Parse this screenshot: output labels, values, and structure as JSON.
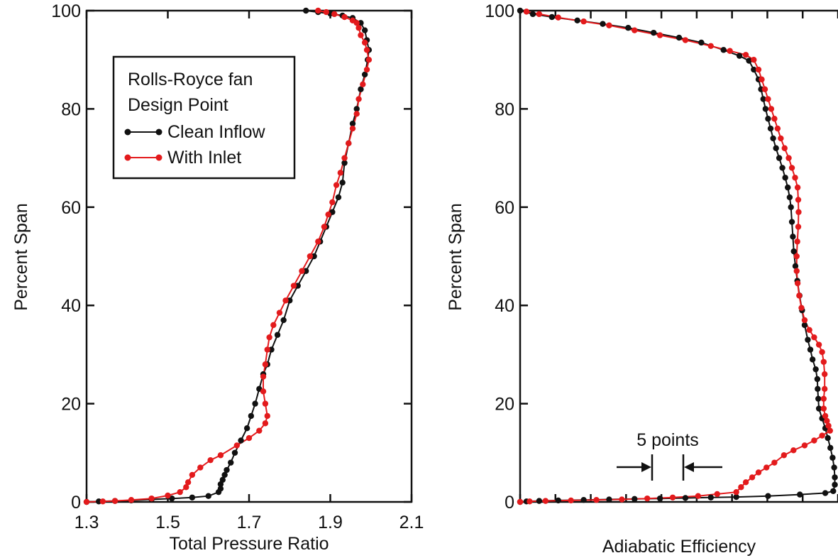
{
  "chart_data": [
    {
      "type": "line",
      "title": "",
      "xlabel": "Total Pressure Ratio",
      "ylabel": "Percent Span",
      "xlim": [
        1.3,
        2.1
      ],
      "ylim": [
        0,
        100
      ],
      "xticks": [
        "1.3",
        "1.5",
        "1.7",
        "1.9",
        "2.1"
      ],
      "yticks": [
        "0",
        "20",
        "40",
        "60",
        "80",
        "100"
      ],
      "grid": false,
      "legend": {
        "placement": "top-left",
        "title_lines": [
          "Rolls-Royce fan",
          "Design Point"
        ],
        "entries": [
          "Clean Inflow",
          "With Inlet"
        ]
      },
      "series": [
        {
          "name": "Clean Inflow",
          "color": "#111111",
          "points": [
            [
              1.3,
              0
            ],
            [
              1.33,
              0.1
            ],
            [
              1.37,
              0.2
            ],
            [
              1.41,
              0.3
            ],
            [
              1.46,
              0.5
            ],
            [
              1.51,
              0.7
            ],
            [
              1.56,
              0.9
            ],
            [
              1.6,
              1.2
            ],
            [
              1.625,
              2.0
            ],
            [
              1.63,
              2.7
            ],
            [
              1.63,
              3.6
            ],
            [
              1.635,
              4.5
            ],
            [
              1.64,
              5.5
            ],
            [
              1.645,
              6.5
            ],
            [
              1.655,
              8.0
            ],
            [
              1.665,
              10.0
            ],
            [
              1.68,
              12.5
            ],
            [
              1.695,
              15.0
            ],
            [
              1.705,
              17.5
            ],
            [
              1.715,
              20.0
            ],
            [
              1.725,
              23.0
            ],
            [
              1.735,
              26.0
            ],
            [
              1.745,
              28.0
            ],
            [
              1.755,
              31.0
            ],
            [
              1.77,
              34.0
            ],
            [
              1.785,
              37.0
            ],
            [
              1.8,
              41.0
            ],
            [
              1.82,
              44.0
            ],
            [
              1.84,
              47.0
            ],
            [
              1.86,
              50.0
            ],
            [
              1.875,
              53.0
            ],
            [
              1.89,
              56.0
            ],
            [
              1.905,
              59.0
            ],
            [
              1.92,
              62.0
            ],
            [
              1.93,
              65.0
            ],
            [
              1.935,
              69.0
            ],
            [
              1.945,
              73.0
            ],
            [
              1.955,
              77.0
            ],
            [
              1.965,
              80.0
            ],
            [
              1.975,
              84.0
            ],
            [
              1.985,
              87.0
            ],
            [
              1.992,
              90.0
            ],
            [
              1.995,
              92.0
            ],
            [
              1.99,
              94.0
            ],
            [
              1.985,
              96.0
            ],
            [
              1.975,
              97.5
            ],
            [
              1.955,
              98.5
            ],
            [
              1.93,
              99.0
            ],
            [
              1.9,
              99.4
            ],
            [
              1.87,
              99.7
            ],
            [
              1.84,
              100.0
            ]
          ]
        },
        {
          "name": "With Inlet",
          "color": "#e31a1c",
          "points": [
            [
              1.3,
              0
            ],
            [
              1.34,
              0.1
            ],
            [
              1.37,
              0.2
            ],
            [
              1.41,
              0.4
            ],
            [
              1.46,
              0.7
            ],
            [
              1.5,
              1.3
            ],
            [
              1.53,
              2.0
            ],
            [
              1.545,
              3.0
            ],
            [
              1.55,
              4.0
            ],
            [
              1.56,
              5.5
            ],
            [
              1.58,
              7.0
            ],
            [
              1.605,
              8.5
            ],
            [
              1.63,
              9.5
            ],
            [
              1.67,
              11.5
            ],
            [
              1.7,
              13.0
            ],
            [
              1.725,
              14.5
            ],
            [
              1.74,
              16.0
            ],
            [
              1.745,
              17.5
            ],
            [
              1.74,
              20.0
            ],
            [
              1.735,
              22.5
            ],
            [
              1.735,
              25.5
            ],
            [
              1.74,
              28.0
            ],
            [
              1.745,
              31.0
            ],
            [
              1.75,
              33.5
            ],
            [
              1.76,
              36.0
            ],
            [
              1.775,
              38.5
            ],
            [
              1.79,
              41.0
            ],
            [
              1.81,
              44.0
            ],
            [
              1.83,
              47.0
            ],
            [
              1.85,
              50.0
            ],
            [
              1.87,
              53.0
            ],
            [
              1.885,
              56.0
            ],
            [
              1.895,
              58.5
            ],
            [
              1.905,
              61.0
            ],
            [
              1.915,
              64.5
            ],
            [
              1.925,
              67.0
            ],
            [
              1.935,
              70.0
            ],
            [
              1.945,
              73.0
            ],
            [
              1.955,
              76.0
            ],
            [
              1.965,
              79.0
            ],
            [
              1.97,
              82.0
            ],
            [
              1.98,
              85.0
            ],
            [
              1.99,
              88.0
            ],
            [
              1.995,
              90.0
            ],
            [
              1.99,
              92.0
            ],
            [
              1.985,
              93.5
            ],
            [
              1.975,
              95.0
            ],
            [
              1.97,
              96.5
            ],
            [
              1.965,
              97.5
            ],
            [
              1.955,
              98.0
            ],
            [
              1.935,
              98.7
            ],
            [
              1.91,
              99.3
            ],
            [
              1.89,
              99.7
            ],
            [
              1.87,
              100.0
            ]
          ]
        }
      ]
    },
    {
      "type": "line",
      "title": "",
      "xlabel": "Adiabatic Efficiency",
      "ylabel": "Percent Span",
      "xlim": [
        0,
        100
      ],
      "ylim": [
        0,
        100
      ],
      "xticks": [
        "",
        "",
        "",
        "",
        "",
        "",
        "",
        "",
        "",
        ""
      ],
      "yticks": [
        "0",
        "20",
        "40",
        "60",
        "80",
        "100"
      ],
      "grid": false,
      "annotation": {
        "text": "5 points",
        "x_from": 41.8,
        "x_to": 50.5,
        "y": 7
      },
      "series": [
        {
          "name": "Clean Inflow",
          "color": "#111111",
          "points": [
            [
              0,
              0
            ],
            [
              2,
              0.1
            ],
            [
              6,
              0.2
            ],
            [
              12,
              0.3
            ],
            [
              20,
              0.4
            ],
            [
              28,
              0.5
            ],
            [
              36,
              0.6
            ],
            [
              44,
              0.7
            ],
            [
              52,
              0.8
            ],
            [
              60,
              0.9
            ],
            [
              68,
              1.0
            ],
            [
              78,
              1.2
            ],
            [
              88,
              1.5
            ],
            [
              96,
              1.8
            ],
            [
              98.5,
              2.2
            ],
            [
              99,
              3.5
            ],
            [
              99,
              5.0
            ],
            [
              98.8,
              7.0
            ],
            [
              98.3,
              9.0
            ],
            [
              97.6,
              11.0
            ],
            [
              96.8,
              13.0
            ],
            [
              96,
              15.0
            ],
            [
              95,
              17.0
            ],
            [
              94,
              19.0
            ],
            [
              93.8,
              21.0
            ],
            [
              93.6,
              23.0
            ],
            [
              93.5,
              25.0
            ],
            [
              93,
              27.0
            ],
            [
              92,
              29.0
            ],
            [
              91.3,
              31.0
            ],
            [
              90.5,
              33.0
            ],
            [
              89.5,
              36.0
            ],
            [
              88.7,
              39.0
            ],
            [
              87.9,
              42.0
            ],
            [
              87.2,
              45.0
            ],
            [
              86.6,
              48.0
            ],
            [
              86.1,
              51.0
            ],
            [
              85.8,
              54.0
            ],
            [
              85.5,
              57.0
            ],
            [
              85.2,
              60.0
            ],
            [
              84.8,
              62.0
            ],
            [
              84.2,
              64.0
            ],
            [
              83.4,
              66.0
            ],
            [
              82.5,
              68.0
            ],
            [
              81.5,
              70.0
            ],
            [
              80.5,
              72.0
            ],
            [
              79.6,
              74.0
            ],
            [
              78.8,
              76.0
            ],
            [
              78,
              78.0
            ],
            [
              77.2,
              80.0
            ],
            [
              76.5,
              82.0
            ],
            [
              75.8,
              84.0
            ],
            [
              75,
              86.0
            ],
            [
              73.5,
              88.0
            ],
            [
              72,
              89.8
            ],
            [
              69,
              90.8
            ],
            [
              64,
              92.0
            ],
            [
              57,
              93.5
            ],
            [
              50,
              94.5
            ],
            [
              42,
              95.5
            ],
            [
              34,
              96.5
            ],
            [
              26,
              97.3
            ],
            [
              18,
              98.0
            ],
            [
              10,
              98.7
            ],
            [
              4,
              99.3
            ],
            [
              0,
              100.0
            ]
          ]
        },
        {
          "name": "With Inlet",
          "color": "#e31a1c",
          "points": [
            [
              0,
              0
            ],
            [
              3,
              0.1
            ],
            [
              8,
              0.2
            ],
            [
              16,
              0.3
            ],
            [
              24,
              0.4
            ],
            [
              32,
              0.5
            ],
            [
              40,
              0.7
            ],
            [
              48,
              0.9
            ],
            [
              56,
              1.2
            ],
            [
              62,
              1.6
            ],
            [
              68,
              2.0
            ],
            [
              69.5,
              3.0
            ],
            [
              71,
              4.0
            ],
            [
              73,
              5.0
            ],
            [
              75,
              6.0
            ],
            [
              77.5,
              7.0
            ],
            [
              80,
              8.0
            ],
            [
              83,
              9.5
            ],
            [
              86,
              10.5
            ],
            [
              89.5,
              11.5
            ],
            [
              92.5,
              12.5
            ],
            [
              95,
              13.5
            ],
            [
              97.5,
              14.5
            ],
            [
              97,
              15.5
            ],
            [
              96.5,
              16.5
            ],
            [
              96,
              17.5
            ],
            [
              95.5,
              19.0
            ],
            [
              95.5,
              21.0
            ],
            [
              95.8,
              23.0
            ],
            [
              95.8,
              26.0
            ],
            [
              95.5,
              28.5
            ],
            [
              95,
              30.5
            ],
            [
              94,
              32.0
            ],
            [
              92.5,
              33.5
            ],
            [
              91,
              35.0
            ],
            [
              89.5,
              37.0
            ],
            [
              88.5,
              39.5
            ],
            [
              87.8,
              42.0
            ],
            [
              87.3,
              44.5
            ],
            [
              87,
              47.0
            ],
            [
              87,
              50.0
            ],
            [
              87.2,
              53.0
            ],
            [
              87.5,
              56.0
            ],
            [
              87.6,
              59.0
            ],
            [
              87.5,
              61.5
            ],
            [
              87.3,
              64.0
            ],
            [
              86.5,
              66.0
            ],
            [
              85.5,
              68.0
            ],
            [
              84.5,
              70.0
            ],
            [
              83.2,
              72.0
            ],
            [
              82,
              74.0
            ],
            [
              81,
              76.0
            ],
            [
              80,
              78.0
            ],
            [
              79,
              80.0
            ],
            [
              78,
              82.0
            ],
            [
              77,
              84.0
            ],
            [
              76,
              86.0
            ],
            [
              75,
              88.0
            ],
            [
              73.5,
              90.0
            ],
            [
              71,
              91.0
            ],
            [
              66,
              91.8
            ],
            [
              60,
              92.8
            ],
            [
              52,
              94.0
            ],
            [
              44,
              95.0
            ],
            [
              36,
              96.0
            ],
            [
              28,
              97.0
            ],
            [
              20,
              97.8
            ],
            [
              12,
              98.6
            ],
            [
              6,
              99.3
            ],
            [
              2,
              99.8
            ]
          ]
        }
      ]
    }
  ]
}
